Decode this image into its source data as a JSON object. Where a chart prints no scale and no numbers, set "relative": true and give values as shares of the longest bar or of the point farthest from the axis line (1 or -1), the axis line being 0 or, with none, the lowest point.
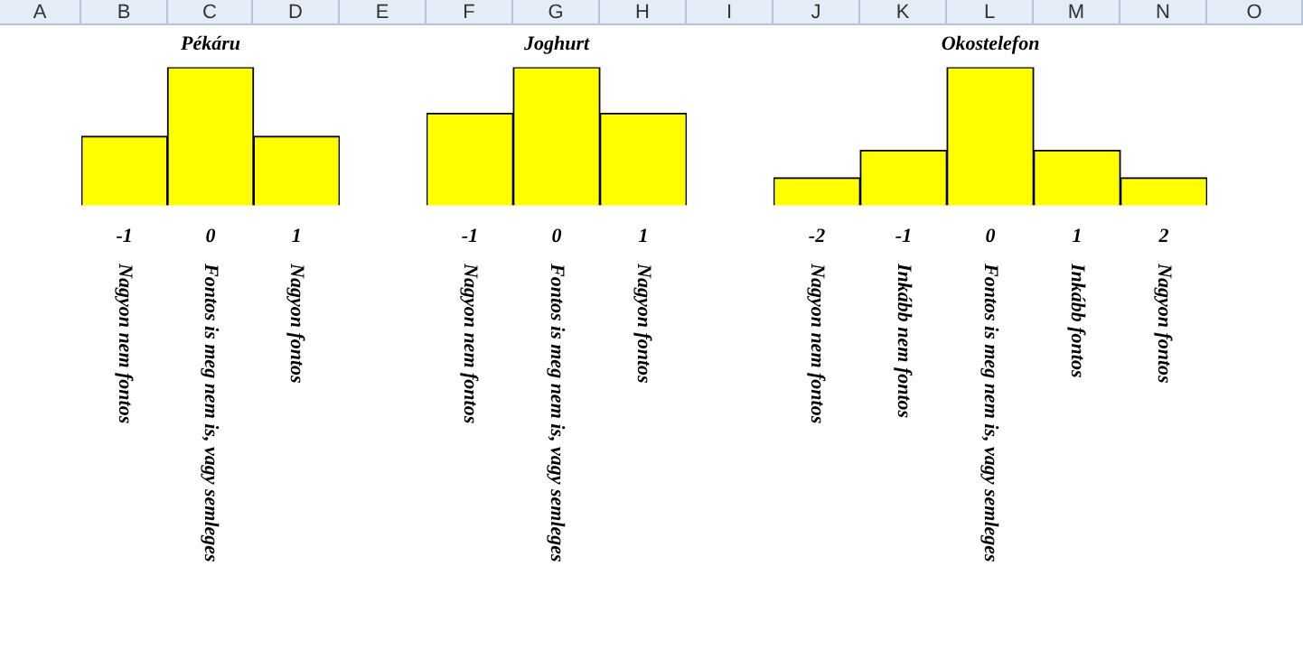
{
  "chart_data": [
    {
      "type": "other",
      "annotations": [
        "A",
        "B",
        "C",
        "D",
        "E",
        "F",
        "G",
        "H",
        "I",
        "J",
        "K",
        "L",
        "M",
        "N",
        "O"
      ]
    },
    {
      "type": "bar",
      "title": "Pékáru",
      "relative": true,
      "categories": [
        "-1",
        "0",
        "1"
      ],
      "values": [
        0.5,
        1,
        0.5
      ],
      "color": "#ffff00",
      "annotations": [
        "Nagyon nem fontos",
        "Fontos is meg nem is, vagy semleges",
        "Nagyon fontos"
      ]
    },
    {
      "type": "bar",
      "title": "Joghurt",
      "relative": true,
      "categories": [
        "-1",
        "0",
        "1"
      ],
      "values": [
        0.667,
        1,
        0.667
      ],
      "color": "#ffff00",
      "annotations": [
        "Nagyon nem fontos",
        "Fontos is meg nem is, vagy semleges",
        "Nagyon fontos"
      ]
    },
    {
      "type": "bar",
      "title": "Okostelefon",
      "relative": true,
      "categories": [
        "-2",
        "-1",
        "0",
        "1",
        "2"
      ],
      "values": [
        0.2,
        0.4,
        1,
        0.4,
        0.2
      ],
      "color": "#ffff00",
      "annotations": [
        "Nagyon nem fontos",
        "Inkább nem fontos",
        "Fontos is meg nem is, vagy semleges",
        "Inkább fontos",
        "Nagyon fontos"
      ]
    }
  ]
}
